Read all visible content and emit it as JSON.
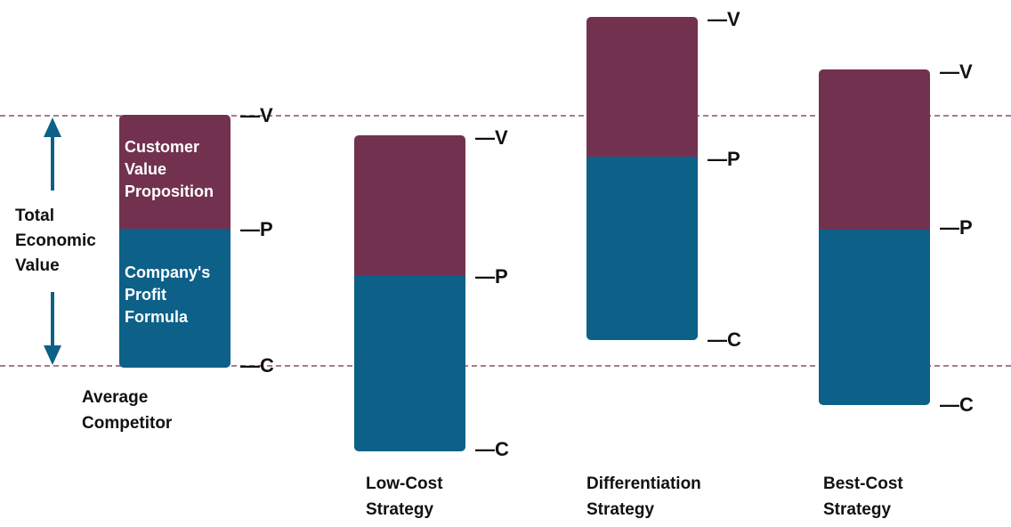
{
  "colors": {
    "value_segment": "#72324f",
    "profit_segment": "#0d6088",
    "dashed_line": "#a87a92",
    "arrow": "#0d6088",
    "text": "#111111"
  },
  "markers": {
    "v": "—V",
    "p": "—P",
    "c": "—C"
  },
  "axis_label": {
    "lines": [
      "Total",
      "Economic",
      "Value"
    ]
  },
  "average_bar": {
    "top_label": [
      "Customer",
      "Value",
      "Proposition"
    ],
    "bottom_label": [
      "Company's",
      "Profit",
      "Formula"
    ]
  },
  "strategies": [
    {
      "caption": [
        "Average",
        "Competitor"
      ]
    },
    {
      "caption": [
        "Low-Cost",
        "Strategy"
      ]
    },
    {
      "caption": [
        "Differentiation",
        "Strategy"
      ]
    },
    {
      "caption": [
        "Best-Cost",
        "Strategy"
      ]
    }
  ]
}
